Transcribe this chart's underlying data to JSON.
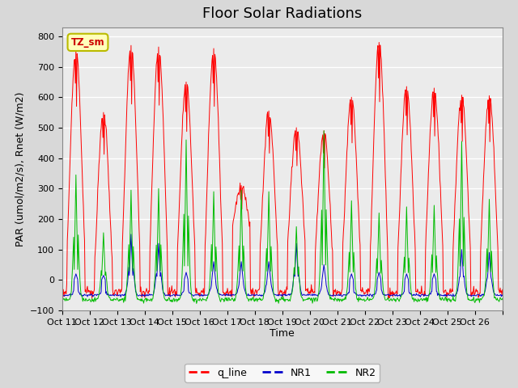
{
  "title": "Floor Solar Radiations",
  "ylabel": "PAR (umol/m2/s), Rnet (W/m2)",
  "xlabel": "Time",
  "ylim": [
    -100,
    830
  ],
  "ytick_values": [
    -100,
    0,
    100,
    200,
    300,
    400,
    500,
    600,
    700,
    800
  ],
  "xtick_labels": [
    "Oct 11",
    "Oct 12",
    "Oct 13",
    "Oct 14",
    "Oct 15",
    "Oct 16",
    "Oct 17",
    "Oct 18",
    "Oct 19",
    "Oct 20",
    "Oct 21",
    "Oct 22",
    "Oct 23",
    "Oct 24",
    "Oct 25",
    "Oct 26"
  ],
  "colors": {
    "q_line": "#FF0000",
    "NR1": "#0000CC",
    "NR2": "#00BB00",
    "fig_bg": "#D8D8D8",
    "plot_bg": "#EBEBEB",
    "annotation_bg": "#FFFFBB",
    "annotation_border": "#BBBB00"
  },
  "legend_labels": [
    "q_line",
    "NR1",
    "NR2"
  ],
  "annotation_text": "TZ_sm",
  "day_peaks_q": [
    760,
    550,
    770,
    765,
    650,
    760,
    310,
    555,
    500,
    490,
    600,
    780,
    635,
    630,
    607,
    605
  ],
  "day_peaks_nr2": [
    345,
    155,
    295,
    300,
    460,
    290,
    295,
    290,
    175,
    490,
    260,
    220,
    240,
    245,
    455,
    265
  ],
  "day_peaks_nr1": [
    20,
    15,
    150,
    120,
    25,
    60,
    60,
    60,
    120,
    50,
    20,
    25,
    20,
    20,
    100,
    90
  ],
  "day_base_q": [
    110,
    60,
    110,
    105,
    100,
    105,
    175,
    100,
    120,
    85,
    100,
    100,
    100,
    100,
    100,
    100
  ],
  "nr1_base": -50,
  "nr2_base": -65,
  "pts_per_day": 48,
  "title_fontsize": 13,
  "axis_label_fontsize": 9,
  "tick_fontsize": 8
}
